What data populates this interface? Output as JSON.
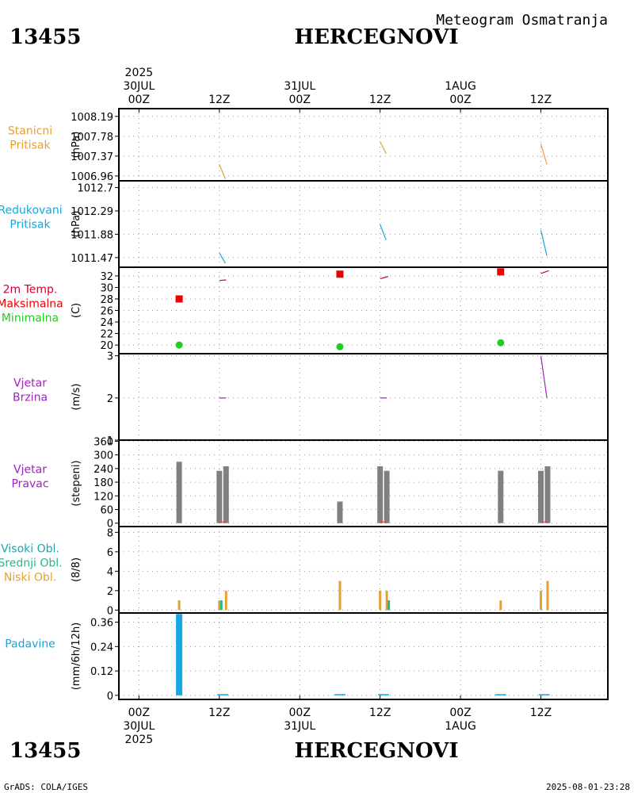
{
  "header": {
    "station_id": "13455",
    "station_name": "HERCEGNOVI",
    "title": "Meteogram Osmatranja"
  },
  "footer": {
    "left": "GrADS: COLA/IGES",
    "right": "2025-08-01-23:28"
  },
  "x_axis": {
    "top_labels": [
      {
        "t": 0,
        "lines": [
          "2025",
          "30JUL",
          "00Z"
        ]
      },
      {
        "t": 12,
        "lines": [
          "12Z"
        ]
      },
      {
        "t": 24,
        "lines": [
          "31JUL",
          "00Z"
        ]
      },
      {
        "t": 36,
        "lines": [
          "12Z"
        ]
      },
      {
        "t": 48,
        "lines": [
          "1AUG",
          "00Z"
        ]
      },
      {
        "t": 60,
        "lines": [
          "12Z"
        ]
      }
    ],
    "bottom_labels": [
      {
        "t": 0,
        "lines": [
          "00Z",
          "30JUL",
          "2025"
        ]
      },
      {
        "t": 12,
        "lines": [
          "12Z"
        ]
      },
      {
        "t": 24,
        "lines": [
          "00Z",
          "31JUL"
        ]
      },
      {
        "t": 36,
        "lines": [
          "12Z"
        ]
      },
      {
        "t": 48,
        "lines": [
          "00Z",
          "1AUG"
        ]
      },
      {
        "t": 60,
        "lines": [
          "12Z"
        ]
      }
    ],
    "range_hours": [
      -3,
      70
    ]
  },
  "chart_data": [
    {
      "type": "line",
      "id": "stanicni",
      "labels": [
        {
          "text": "Stanicni",
          "color": "#e6a033"
        },
        {
          "text": "Pritisak",
          "color": "#e6a033"
        }
      ],
      "ylabel": "(hPa)",
      "ylim": [
        1006.86,
        1008.35
      ],
      "yticks": [
        "1008.19",
        "1007.78",
        "1007.37",
        "1006.96"
      ],
      "yticks_values": [
        1008.19,
        1007.78,
        1007.37,
        1006.96
      ],
      "series": [
        {
          "color": "#e6a033",
          "segments": [
            [
              [
                12,
                1007.2
              ],
              [
                12.9,
                1006.9
              ]
            ],
            [
              [
                36,
                1007.67
              ],
              [
                36.9,
                1007.42
              ]
            ],
            [
              [
                60,
                1007.62
              ],
              [
                60.9,
                1007.2
              ]
            ]
          ]
        }
      ]
    },
    {
      "type": "line",
      "id": "redukovani",
      "labels": [
        {
          "text": "Redukovani",
          "color": "#1aa5d6"
        },
        {
          "text": "Pritisak",
          "color": "#1aa5d6"
        }
      ],
      "ylabel": "(hPa)",
      "ylim": [
        1011.3,
        1012.82
      ],
      "yticks": [
        "1012.7",
        "1012.29",
        "1011.88",
        "1011.47"
      ],
      "yticks_values": [
        1012.7,
        1012.29,
        1011.88,
        1011.47
      ],
      "series": [
        {
          "color": "#1aa5d6",
          "segments": [
            [
              [
                12,
                1011.55
              ],
              [
                12.9,
                1011.37
              ]
            ],
            [
              [
                36,
                1012.05
              ],
              [
                36.9,
                1011.78
              ]
            ],
            [
              [
                60,
                1011.95
              ],
              [
                60.9,
                1011.5
              ]
            ]
          ]
        }
      ]
    },
    {
      "type": "line",
      "id": "temperatura",
      "labels": [
        {
          "text": "2m Temp.",
          "color": "#cc0033"
        },
        {
          "text": "Maksimalna",
          "color": "#ee0000"
        },
        {
          "text": "Minimalna",
          "color": "#22cc22"
        }
      ],
      "ylabel": "(C)",
      "ylim": [
        18.5,
        33.5
      ],
      "yticks": [
        "32",
        "30",
        "28",
        "26",
        "24",
        "22",
        "20"
      ],
      "yticks_values": [
        32,
        30,
        28,
        26,
        24,
        22,
        20
      ],
      "series": [
        {
          "name": "2m Temp.",
          "color": "#cc0033",
          "segments": [
            [
              [
                12,
                31.2
              ],
              [
                13,
                31.3
              ]
            ],
            [
              [
                36,
                31.5
              ],
              [
                37.2,
                31.9
              ]
            ],
            [
              [
                60,
                32.4
              ],
              [
                61.2,
                32.9
              ]
            ]
          ]
        }
      ],
      "max_points": [
        {
          "t": 6,
          "v": 28
        },
        {
          "t": 30,
          "v": 32.3
        },
        {
          "t": 54,
          "v": 32.7
        }
      ],
      "min_points": [
        {
          "t": 6,
          "v": 20
        },
        {
          "t": 30,
          "v": 19.7
        },
        {
          "t": 54,
          "v": 20.4
        }
      ]
    },
    {
      "type": "line",
      "id": "vjetar_brzina",
      "labels": [
        {
          "text": "Vjetar",
          "color": "#a020c0"
        },
        {
          "text": "Brzina",
          "color": "#a020c0"
        }
      ],
      "ylabel": "(m/s)",
      "ylim": [
        1,
        3.05
      ],
      "yticks": [
        "3",
        "2",
        "1"
      ],
      "yticks_values": [
        3,
        2,
        1
      ],
      "series": [
        {
          "color": "#a020c0",
          "segments": [
            [
              [
                12,
                2
              ],
              [
                13,
                2
              ]
            ],
            [
              [
                36,
                2
              ],
              [
                37,
                2
              ]
            ],
            [
              [
                60,
                3
              ],
              [
                60.9,
                2
              ]
            ]
          ]
        }
      ]
    },
    {
      "type": "bar",
      "id": "vjetar_pravac",
      "labels": [
        {
          "text": "Vjetar",
          "color": "#a020c0"
        },
        {
          "text": "Pravac",
          "color": "#a020c0"
        }
      ],
      "ylabel": "(stepeni)",
      "ylim": [
        -15,
        365
      ],
      "yticks": [
        "360",
        "300",
        "240",
        "180",
        "120",
        "60",
        "0"
      ],
      "yticks_values": [
        360,
        300,
        240,
        180,
        120,
        60,
        0
      ],
      "bars": [
        {
          "t": 6,
          "v": 270
        },
        {
          "t": 12,
          "v": 230
        },
        {
          "t": 13,
          "v": 250
        },
        {
          "t": 30,
          "v": 95
        },
        {
          "t": 36,
          "v": 250
        },
        {
          "t": 37,
          "v": 230
        },
        {
          "t": 54,
          "v": 230
        },
        {
          "t": 60,
          "v": 230
        },
        {
          "t": 61,
          "v": 250
        }
      ],
      "bar_color": "#808080",
      "red_marks": [
        {
          "t": 12.5,
          "v": 5
        },
        {
          "t": 36.5,
          "v": 5
        },
        {
          "t": 60.5,
          "v": 5
        }
      ]
    },
    {
      "type": "bar",
      "id": "oblacnost",
      "labels": [
        {
          "text": "Visoki Obl.",
          "color": "#1aa5b0"
        },
        {
          "text": "Srednji Obl.",
          "color": "#22bb88"
        },
        {
          "text": "Niski Obl.",
          "color": "#e6a033"
        }
      ],
      "ylabel": "(8/8)",
      "ylim": [
        -0.3,
        8.6
      ],
      "yticks": [
        "8",
        "6",
        "4",
        "2",
        "0"
      ],
      "yticks_values": [
        8,
        6,
        4,
        2,
        0
      ],
      "niski": [
        {
          "t": 6,
          "v": 1
        },
        {
          "t": 12,
          "v": 1
        },
        {
          "t": 13,
          "v": 2
        },
        {
          "t": 30,
          "v": 3
        },
        {
          "t": 36,
          "v": 2
        },
        {
          "t": 37,
          "v": 2
        },
        {
          "t": 54,
          "v": 1
        },
        {
          "t": 60,
          "v": 2
        },
        {
          "t": 61,
          "v": 3
        }
      ],
      "srednji": [
        {
          "t": 12.3,
          "v": 1
        },
        {
          "t": 37.3,
          "v": 1
        }
      ],
      "niski_color": "#e6a033",
      "srednji_color": "#22bb88"
    },
    {
      "type": "bar",
      "id": "padavine",
      "labels": [
        {
          "text": "Padavine",
          "color": "#1aa5d6"
        }
      ],
      "ylabel": "(mm/6h/12h)",
      "ylim": [
        -0.02,
        0.405
      ],
      "yticks": [
        "0.36",
        "0.24",
        "0.12",
        "0"
      ],
      "yticks_values": [
        0.36,
        0.24,
        0.12,
        0
      ],
      "bars": [
        {
          "t": 6,
          "v": 0.4
        },
        {
          "t": 12.5,
          "v": 0.003
        },
        {
          "t": 30,
          "v": 0.003
        },
        {
          "t": 36.5,
          "v": 0.003
        },
        {
          "t": 54,
          "v": 0.003
        },
        {
          "t": 60.5,
          "v": 0.003
        }
      ],
      "bar_color": "#1aa5e6"
    }
  ]
}
